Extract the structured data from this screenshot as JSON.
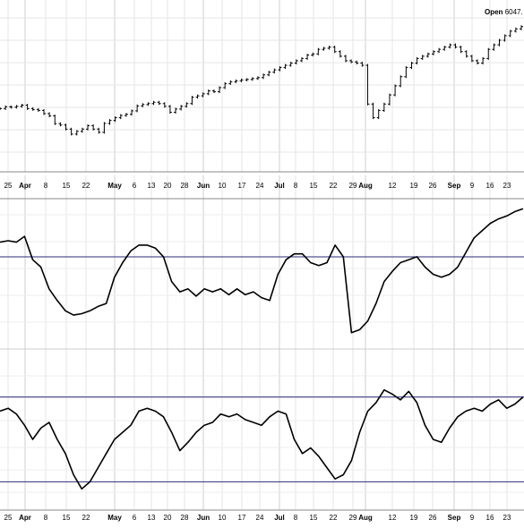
{
  "header": {
    "open_key": "Open",
    "open_value": "6047."
  },
  "chart_data": [
    {
      "type": "ohlc",
      "panel": "price",
      "grid": true,
      "x_tick_labels": [
        "25",
        "Apr",
        "8",
        "15",
        "22",
        "May",
        "6",
        "13",
        "20",
        "28",
        "Jun",
        "10",
        "17",
        "24",
        "Jul",
        "8",
        "15",
        "22",
        "29",
        "Aug",
        "12",
        "19",
        "26",
        "Sep",
        "9",
        "16",
        "23"
      ],
      "x_month_labels": [
        "Apr",
        "May",
        "Jun",
        "Jul",
        "Aug",
        "Sep"
      ],
      "close_series": [
        5240,
        5248,
        5246,
        5250,
        5255,
        5240,
        5236,
        5232,
        5218,
        5208,
        5174,
        5168,
        5150,
        5128,
        5140,
        5150,
        5165,
        5150,
        5136,
        5175,
        5188,
        5200,
        5210,
        5215,
        5230,
        5252,
        5258,
        5262,
        5268,
        5262,
        5250,
        5224,
        5238,
        5250,
        5262,
        5290,
        5296,
        5305,
        5318,
        5314,
        5332,
        5350,
        5358,
        5362,
        5366,
        5368,
        5372,
        5376,
        5388,
        5400,
        5410,
        5420,
        5430,
        5440,
        5450,
        5460,
        5475,
        5480,
        5500,
        5505,
        5510,
        5490,
        5470,
        5450,
        5445,
        5440,
        5430,
        5260,
        5200,
        5232,
        5260,
        5300,
        5340,
        5380,
        5420,
        5440,
        5460,
        5470,
        5480,
        5490,
        5500,
        5510,
        5520,
        5510,
        5490,
        5470,
        5450,
        5440,
        5460,
        5500,
        5520,
        5540,
        5560,
        5580,
        5590,
        5600
      ]
    },
    {
      "type": "line",
      "panel": "indicator-1",
      "reference_line": 62,
      "ylim": [
        0,
        100
      ],
      "values": [
        72,
        73,
        72,
        76,
        60,
        55,
        40,
        32,
        25,
        22,
        23,
        25,
        28,
        30,
        48,
        58,
        66,
        70,
        70,
        68,
        62,
        45,
        38,
        40,
        35,
        40,
        38,
        40,
        36,
        40,
        36,
        38,
        34,
        32,
        50,
        60,
        64,
        64,
        58,
        56,
        58,
        70,
        62,
        10,
        12,
        18,
        30,
        45,
        52,
        58,
        60,
        62,
        55,
        50,
        48,
        50,
        55,
        65,
        75,
        80,
        85,
        88,
        90,
        93,
        95
      ]
    },
    {
      "type": "line",
      "panel": "indicator-2",
      "reference_lines": [
        80,
        20
      ],
      "ylim": [
        0,
        100
      ],
      "values": [
        70,
        72,
        68,
        60,
        50,
        58,
        62,
        50,
        40,
        25,
        15,
        20,
        30,
        40,
        50,
        55,
        60,
        70,
        72,
        70,
        66,
        55,
        42,
        48,
        55,
        60,
        62,
        68,
        66,
        68,
        64,
        62,
        60,
        66,
        70,
        68,
        50,
        40,
        44,
        38,
        30,
        22,
        25,
        35,
        55,
        70,
        76,
        85,
        82,
        78,
        84,
        76,
        60,
        50,
        48,
        58,
        66,
        70,
        72,
        70,
        75,
        78,
        72,
        75,
        80
      ]
    }
  ]
}
